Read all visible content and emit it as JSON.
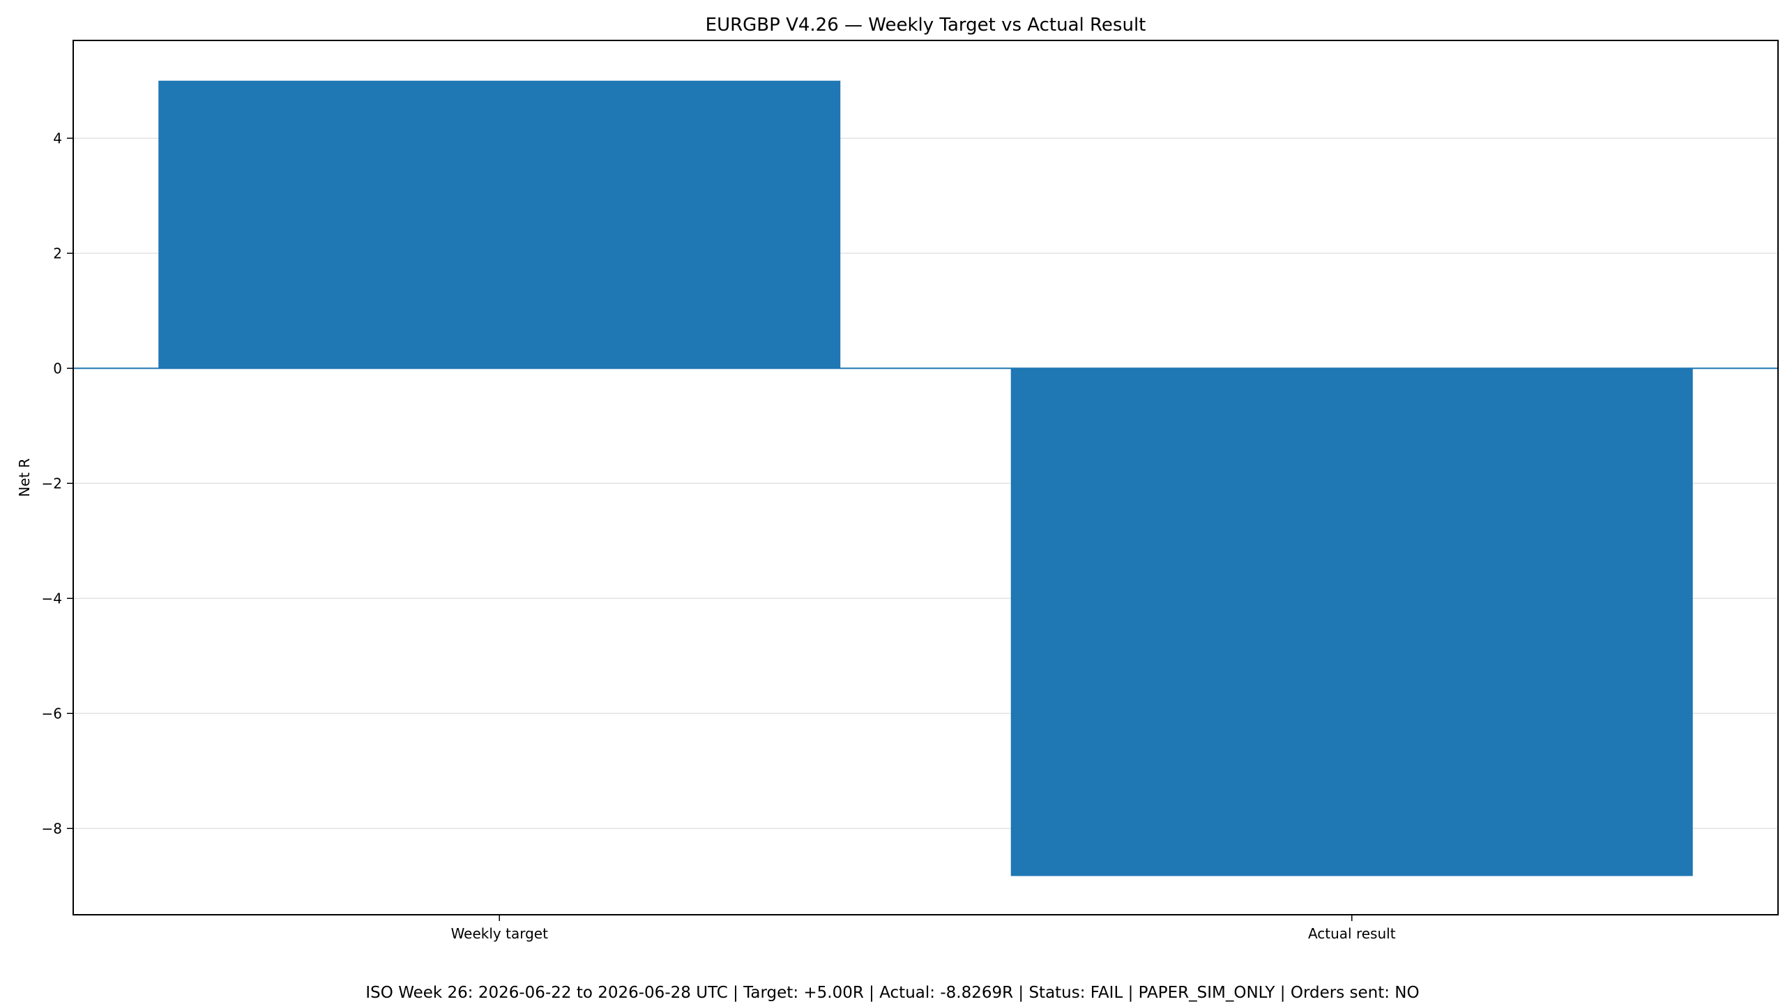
{
  "chart_data": {
    "type": "bar",
    "title": "EURGBP V4.26 — Weekly Target vs Actual Result",
    "xlabel": "",
    "ylabel": "Net R",
    "categories": [
      "Weekly target",
      "Actual result"
    ],
    "values": [
      5.0,
      -8.8269
    ],
    "ylim": [
      -9.5,
      5.7
    ],
    "yticks": [
      4,
      2,
      0,
      -2,
      -4,
      -6,
      -8
    ],
    "ytick_labels": [
      "4",
      "2",
      "0",
      "−2",
      "−4",
      "−6",
      "−8"
    ],
    "grid": "y",
    "zero_line": true,
    "bar_color": "#1f77b4",
    "caption": "ISO Week 26: 2026-06-22 to 2026-06-28 UTC | Target: +5.00R | Actual: -8.8269R | Status: FAIL | PAPER_SIM_ONLY | Orders sent: NO"
  }
}
